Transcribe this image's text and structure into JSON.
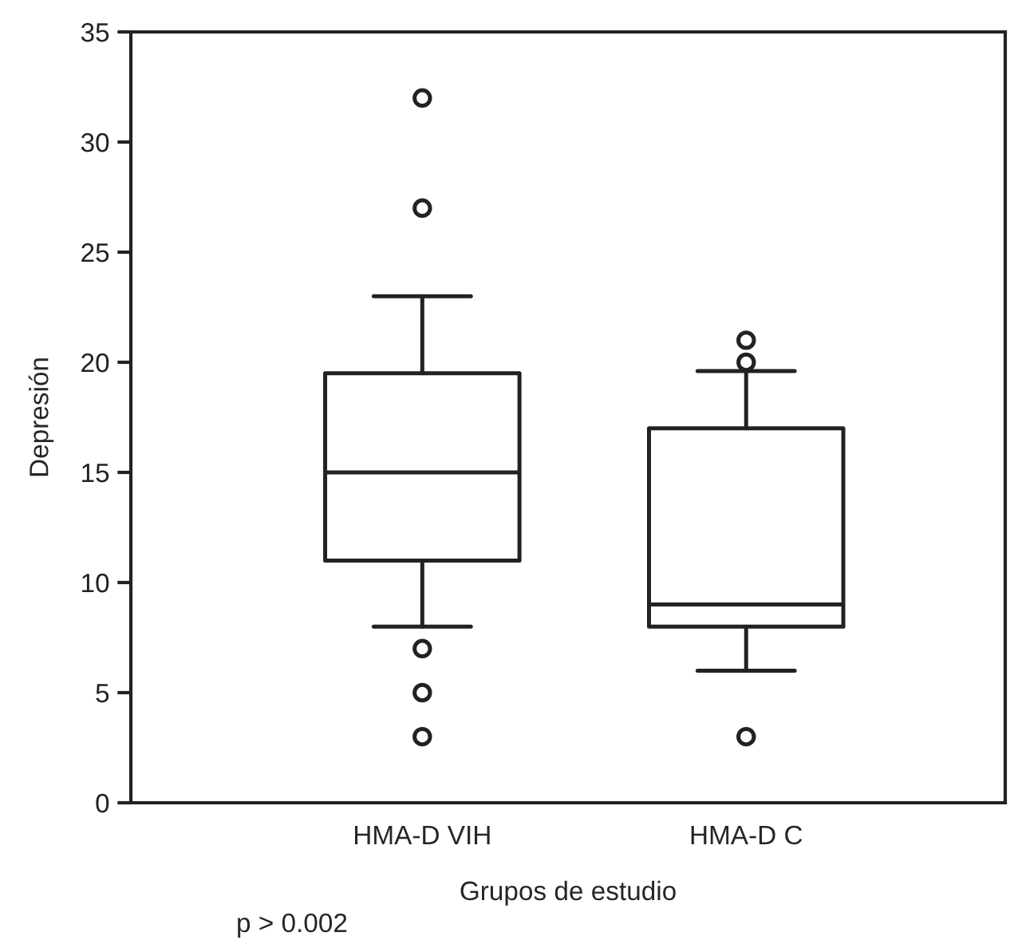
{
  "chart_data": {
    "type": "box",
    "xlabel": "Grupos de estudio",
    "ylabel": "Depresión",
    "categories": [
      "HMA-D VIH",
      "HMA-D C"
    ],
    "boxes": [
      {
        "low": 8,
        "q1": 11,
        "median": 15,
        "q3": 19.5,
        "high": 23,
        "outliers": [
          32,
          27,
          7,
          5,
          3
        ]
      },
      {
        "low": 6,
        "q1": 8,
        "median": 9,
        "q3": 17,
        "high": 19.6,
        "outliers": [
          21,
          20,
          3
        ]
      }
    ],
    "ylim": [
      0,
      35
    ],
    "yticks": [
      0,
      5,
      10,
      15,
      20,
      25,
      30,
      35
    ],
    "grid": false,
    "legend": false,
    "annotations": [
      "p > 0.002"
    ]
  }
}
